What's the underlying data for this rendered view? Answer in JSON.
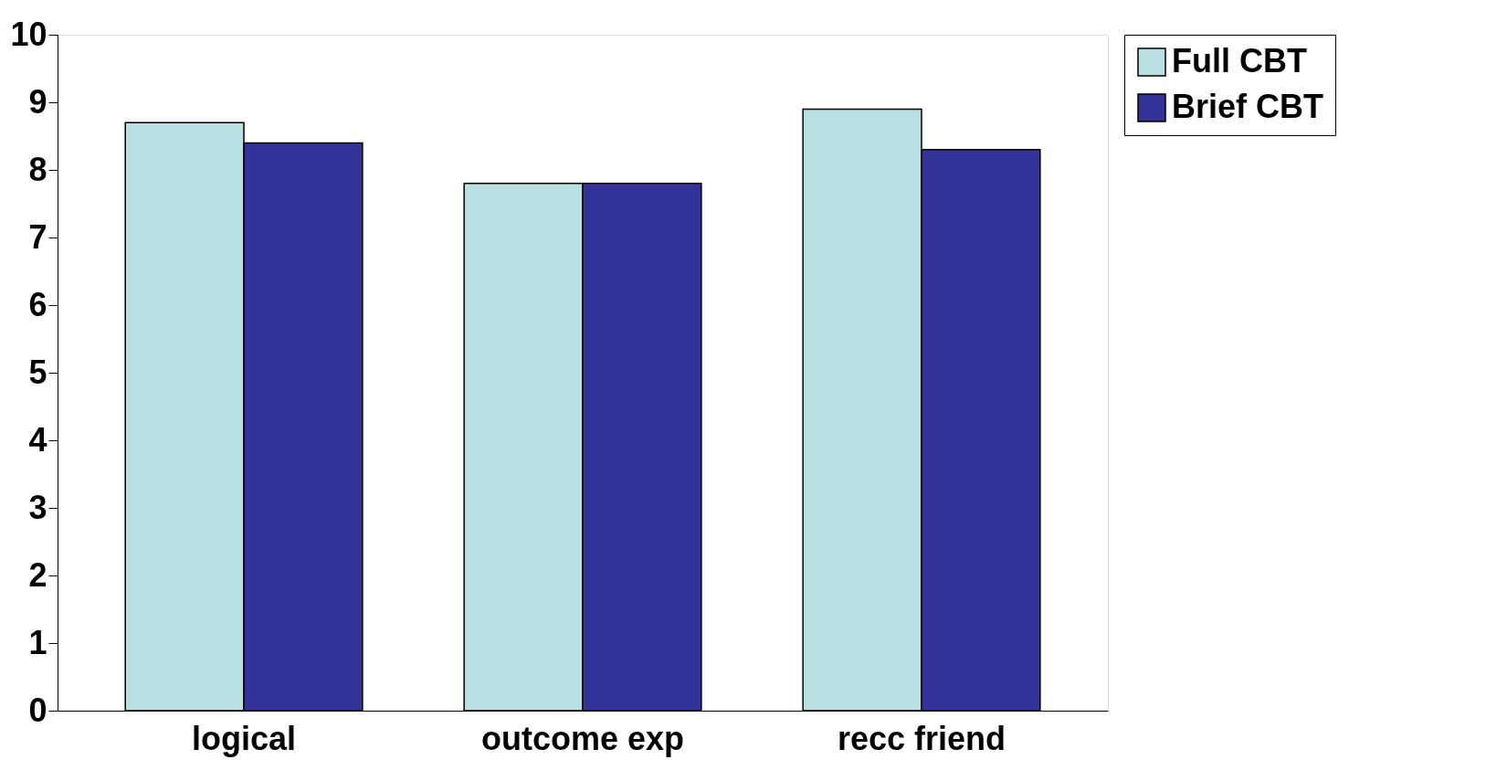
{
  "chart_data": {
    "type": "bar",
    "categories": [
      "logical",
      "outcome exp",
      "recc friend"
    ],
    "series": [
      {
        "name": "Full CBT",
        "color": "#b8e0e3",
        "values": [
          8.7,
          7.8,
          8.9
        ]
      },
      {
        "name": "Brief CBT",
        "color": "#333399",
        "values": [
          8.4,
          7.8,
          8.3
        ]
      }
    ],
    "ylim": [
      0,
      10
    ],
    "yticks": [
      0,
      1,
      2,
      3,
      4,
      5,
      6,
      7,
      8,
      9,
      10
    ],
    "grid": false,
    "legend": "right"
  }
}
